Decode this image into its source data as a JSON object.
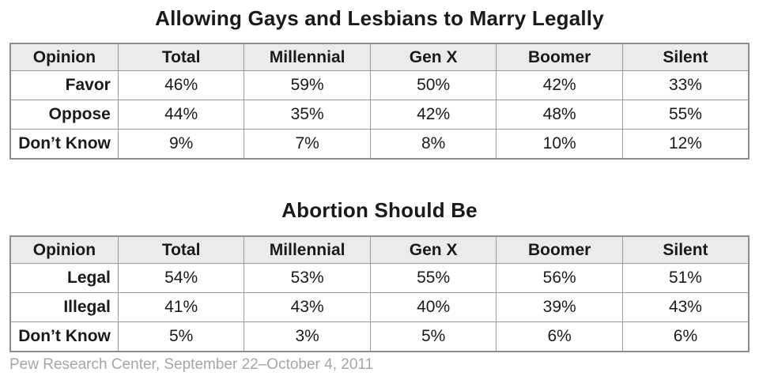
{
  "page": {
    "footer": "Pew Research Center, September 22–October 4, 2011"
  },
  "colors": {
    "background": "#ffffff",
    "header_bg": "#ebebeb",
    "border": "#999999",
    "text": "#1a1a1a",
    "footer_text": "#a6a6a6"
  },
  "chart_data": [
    {
      "type": "table",
      "title": "Allowing Gays and Lesbians to Marry Legally",
      "columns": [
        "Opinion",
        "Total",
        "Millennial",
        "Gen X",
        "Boomer",
        "Silent"
      ],
      "rows": [
        {
          "label": "Favor",
          "values": [
            "46%",
            "59%",
            "50%",
            "42%",
            "33%"
          ]
        },
        {
          "label": "Oppose",
          "values": [
            "44%",
            "35%",
            "42%",
            "48%",
            "55%"
          ]
        },
        {
          "label": "Don’t Know",
          "values": [
            "9%",
            "7%",
            "8%",
            "10%",
            "12%"
          ]
        }
      ]
    },
    {
      "type": "table",
      "title": "Abortion Should Be",
      "columns": [
        "Opinion",
        "Total",
        "Millennial",
        "Gen X",
        "Boomer",
        "Silent"
      ],
      "rows": [
        {
          "label": "Legal",
          "values": [
            "54%",
            "53%",
            "55%",
            "56%",
            "51%"
          ]
        },
        {
          "label": "Illegal",
          "values": [
            "41%",
            "43%",
            "40%",
            "39%",
            "43%"
          ]
        },
        {
          "label": "Don’t Know",
          "values": [
            "5%",
            "3%",
            "5%",
            "6%",
            "6%"
          ]
        }
      ]
    }
  ]
}
